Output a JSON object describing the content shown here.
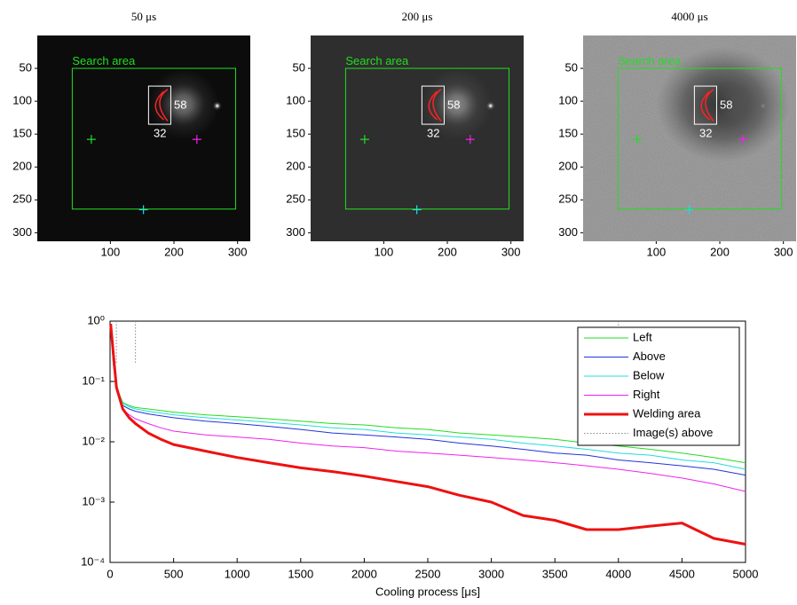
{
  "chart_data": [
    {
      "type": "image",
      "title": "50 μs",
      "xlim": [
        -15,
        320
      ],
      "ylim": [
        0,
        313
      ],
      "xticks": [
        100,
        200,
        300
      ],
      "yticks": [
        50,
        100,
        150,
        200,
        250,
        300
      ],
      "background": "#0c0c0c",
      "noise": false,
      "annotations": [
        "Search area",
        "58",
        "32"
      ]
    },
    {
      "type": "image",
      "title": "200 μs",
      "xlim": [
        -15,
        320
      ],
      "ylim": [
        0,
        313
      ],
      "xticks": [
        100,
        200,
        300
      ],
      "yticks": [
        50,
        100,
        150,
        200,
        250,
        300
      ],
      "background": "#2e2e2e",
      "noise": false,
      "annotations": [
        "Search area",
        "58",
        "32"
      ]
    },
    {
      "type": "image",
      "title": "4000 μs",
      "xlim": [
        -15,
        320
      ],
      "ylim": [
        0,
        313
      ],
      "xticks": [
        100,
        200,
        300
      ],
      "yticks": [
        50,
        100,
        150,
        200,
        250,
        300
      ],
      "background": "#8a8a8a",
      "noise": true,
      "annotations": [
        "Search area",
        "58",
        "32"
      ]
    },
    {
      "type": "line",
      "xlabel": "Cooling process [μs]",
      "log_y": true,
      "grid": false,
      "legend": "upper right",
      "xlim": [
        0,
        5000
      ],
      "ylim": [
        0.0001,
        1
      ],
      "xticks": [
        0,
        500,
        1000,
        1500,
        2000,
        2500,
        3000,
        3500,
        4000,
        4500,
        5000
      ],
      "yticks": [
        {
          "value": 0.0001,
          "label": "10⁻⁴"
        },
        {
          "value": 0.001,
          "label": "10⁻³"
        },
        {
          "value": 0.01,
          "label": "10⁻²"
        },
        {
          "value": 0.1,
          "label": "10⁻¹"
        },
        {
          "value": 1,
          "label": "10⁰"
        }
      ],
      "x": [
        5,
        25,
        50,
        100,
        150,
        200,
        300,
        400,
        500,
        750,
        1000,
        1250,
        1500,
        1750,
        2000,
        2250,
        2500,
        2750,
        3000,
        3250,
        3500,
        3750,
        4000,
        4250,
        4500,
        4750,
        5000
      ],
      "series": [
        {
          "name": "Left",
          "color": "#22dd22",
          "width": 1,
          "values": [
            0.9,
            0.2,
            0.08,
            0.045,
            0.04,
            0.037,
            0.035,
            0.033,
            0.031,
            0.028,
            0.026,
            0.024,
            0.022,
            0.02,
            0.019,
            0.017,
            0.016,
            0.014,
            0.013,
            0.012,
            0.011,
            0.0095,
            0.0085,
            0.0075,
            0.0065,
            0.0055,
            0.0045
          ]
        },
        {
          "name": "Above",
          "color": "#2233dd",
          "width": 1,
          "values": [
            0.9,
            0.2,
            0.08,
            0.04,
            0.035,
            0.032,
            0.029,
            0.027,
            0.025,
            0.022,
            0.02,
            0.018,
            0.016,
            0.014,
            0.013,
            0.012,
            0.011,
            0.0095,
            0.0085,
            0.0075,
            0.0065,
            0.006,
            0.005,
            0.0045,
            0.004,
            0.0035,
            0.0028
          ]
        },
        {
          "name": "Below",
          "color": "#22dddd",
          "width": 1,
          "values": [
            0.9,
            0.2,
            0.08,
            0.043,
            0.038,
            0.035,
            0.032,
            0.03,
            0.028,
            0.025,
            0.023,
            0.021,
            0.019,
            0.017,
            0.016,
            0.014,
            0.013,
            0.012,
            0.011,
            0.0095,
            0.0085,
            0.0075,
            0.0065,
            0.006,
            0.005,
            0.0045,
            0.0035
          ]
        },
        {
          "name": "Right",
          "color": "#ee22ee",
          "width": 1,
          "values": [
            0.9,
            0.2,
            0.07,
            0.035,
            0.028,
            0.024,
            0.02,
            0.017,
            0.015,
            0.013,
            0.012,
            0.011,
            0.0095,
            0.0085,
            0.008,
            0.007,
            0.0065,
            0.006,
            0.0055,
            0.005,
            0.0045,
            0.004,
            0.0035,
            0.003,
            0.0025,
            0.002,
            0.0015
          ]
        },
        {
          "name": "Welding area",
          "color": "#ee1111",
          "width": 3,
          "values": [
            0.9,
            0.3,
            0.08,
            0.035,
            0.025,
            0.02,
            0.014,
            0.011,
            0.009,
            0.007,
            0.0055,
            0.0045,
            0.0037,
            0.0032,
            0.0027,
            0.0022,
            0.0018,
            0.0013,
            0.001,
            0.0006,
            0.0005,
            0.00035,
            0.00035,
            0.0004,
            0.00045,
            0.00025,
            0.0002
          ]
        }
      ],
      "markers": {
        "name": "Image(s) above",
        "color": "#888888",
        "x": [
          50,
          200,
          4000
        ]
      }
    }
  ]
}
